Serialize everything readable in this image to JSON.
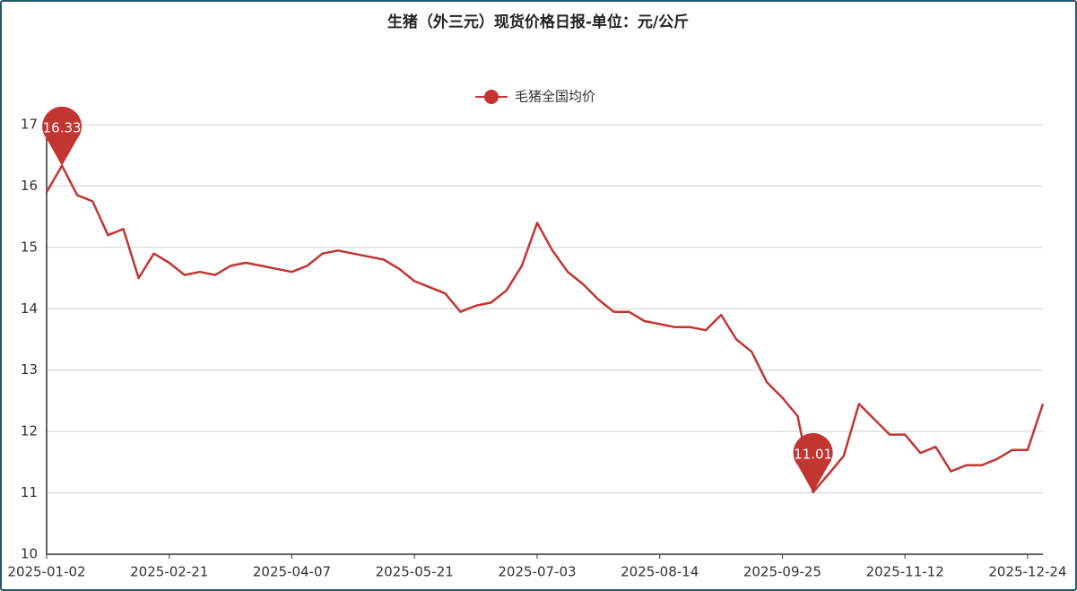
{
  "chart_data": {
    "type": "line",
    "title": "生猪（外三元）现货价格日报-单位：元/公斤",
    "categories": [
      "2025-01-02",
      null,
      null,
      null,
      null,
      null,
      null,
      null,
      "2025-02-21",
      null,
      null,
      null,
      null,
      null,
      null,
      null,
      "2025-04-07",
      null,
      null,
      null,
      null,
      null,
      null,
      null,
      "2025-05-21",
      null,
      null,
      null,
      null,
      null,
      null,
      null,
      "2025-07-03",
      null,
      null,
      null,
      null,
      null,
      null,
      null,
      "2025-08-14",
      null,
      null,
      null,
      null,
      null,
      null,
      null,
      "2025-09-25",
      null,
      null,
      null,
      null,
      null,
      null,
      null,
      "2025-11-12",
      null,
      null,
      null,
      null,
      null,
      null,
      null,
      "2025-12-24",
      null
    ],
    "series": [
      {
        "name": "毛猪全国均价",
        "color": "#c23531",
        "values": [
          15.9,
          16.33,
          15.85,
          15.75,
          15.2,
          15.3,
          14.5,
          14.9,
          14.75,
          14.55,
          14.6,
          14.55,
          14.7,
          14.75,
          14.7,
          14.65,
          14.6,
          14.7,
          14.9,
          14.95,
          14.9,
          14.85,
          14.8,
          14.65,
          14.45,
          14.35,
          14.25,
          13.95,
          14.05,
          14.1,
          14.3,
          14.7,
          15.4,
          14.95,
          14.6,
          14.4,
          14.15,
          13.95,
          13.95,
          13.8,
          13.75,
          13.7,
          13.7,
          13.65,
          13.9,
          13.5,
          13.3,
          12.8,
          12.55,
          12.25,
          11.01,
          11.3,
          11.6,
          12.45,
          12.2,
          11.95,
          11.95,
          11.65,
          11.75,
          11.35,
          11.45,
          11.45,
          11.55,
          11.7,
          11.7,
          12.45
        ]
      }
    ],
    "ylim": [
      10,
      17
    ],
    "yticks": [
      10,
      11,
      12,
      13,
      14,
      15,
      16,
      17
    ],
    "grid": true,
    "legend": "top"
  }
}
